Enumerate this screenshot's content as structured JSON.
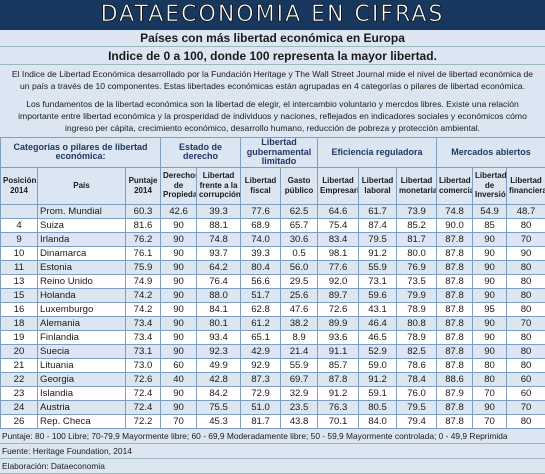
{
  "header": {
    "banner": "DATAECONOMIA EN CIFRAS",
    "title": "Países con más libertad económica en Europa",
    "subtitle": "Indice de 0 a 100, donde 100 representa la mayor libertad."
  },
  "paragraphs": [
    "El Indice de Libertad Económica desarrollado por la Fundación Heritage y The Wall Street Journal mide el nivel de libertad económica de un país a través de 10 componentes. Estas libertades económicas están agrupadas en 4 categorías o pilares de libertad económica.",
    "Los fundamentos de la libertad económica son la libertad de elegir, el intercambio voluntario y mercdos libres. Existe una relación importante entre libertad económica y la prosperidad de individuos y naciones, reflejados en indicadores sociales y económicos cómo ingreso per cápita, crecimiento económico, desarrollo humano, reducción de pobreza y protección ambiental."
  ],
  "table": {
    "groups": [
      {
        "label": "Categorías o pilares de libertad económica:",
        "span": 3
      },
      {
        "label": "Estado de derecho",
        "span": 2
      },
      {
        "label": "Libertad gubernamental limitado",
        "span": 2
      },
      {
        "label": "Eficiencia reguladora",
        "span": 3
      },
      {
        "label": "Mercados abiertos",
        "span": 3
      }
    ],
    "columns": [
      "Posición 2014",
      "País",
      "Puntaje 2014",
      "Derechos de Propiedad",
      "Libertad frente a la corrupción",
      "Libertad fiscal",
      "Gasto público",
      "Libertad Empresarial",
      "Libertad laboral",
      "Libertad monetaria",
      "Libertad comercial",
      "Libertad de Inversión",
      "Libertad financiera"
    ],
    "rows": [
      [
        null,
        "Prom. Mundial",
        "60.3",
        "42.6",
        "39.3",
        "77.6",
        "62.5",
        "64.6",
        "61.7",
        "73.9",
        "74.8",
        "54.9",
        "48.7"
      ],
      [
        "4",
        "Suiza",
        "81.6",
        "90",
        "88.1",
        "68.9",
        "65.7",
        "75.4",
        "87.4",
        "85.2",
        "90.0",
        "85",
        "80"
      ],
      [
        "9",
        "Irlanda",
        "76.2",
        "90",
        "74.8",
        "74.0",
        "30.6",
        "83.4",
        "79.5",
        "81.7",
        "87.8",
        "90",
        "70"
      ],
      [
        "10",
        "Dinamarca",
        "76.1",
        "90",
        "93.7",
        "39.3",
        "0.5",
        "98.1",
        "91.2",
        "80.0",
        "87.8",
        "90",
        "90"
      ],
      [
        "11",
        "Estonia",
        "75.9",
        "90",
        "64.2",
        "80.4",
        "56.0",
        "77.6",
        "55.9",
        "76.9",
        "87.8",
        "90",
        "80"
      ],
      [
        "13",
        "Reino Unido",
        "74.9",
        "90",
        "76.4",
        "56.6",
        "29.5",
        "92.0",
        "73.1",
        "73.5",
        "87.8",
        "90",
        "80"
      ],
      [
        "15",
        "Holanda",
        "74.2",
        "90",
        "88.0",
        "51.7",
        "25.6",
        "89.7",
        "59.6",
        "79.9",
        "87.8",
        "90",
        "80"
      ],
      [
        "16",
        "Luxemburgo",
        "74.2",
        "90",
        "84.1",
        "62.8",
        "47.6",
        "72.6",
        "43.1",
        "78.9",
        "87.8",
        "95",
        "80"
      ],
      [
        "18",
        "Alemania",
        "73.4",
        "90",
        "80.1",
        "61.2",
        "38.2",
        "89.9",
        "46.4",
        "80.8",
        "87.8",
        "90",
        "70"
      ],
      [
        "19",
        "Finlandia",
        "73.4",
        "90",
        "93.4",
        "65.1",
        "8.9",
        "93.6",
        "46.5",
        "78.9",
        "87.8",
        "90",
        "80"
      ],
      [
        "20",
        "Suecia",
        "73.1",
        "90",
        "92.3",
        "42.9",
        "21.4",
        "91.1",
        "52.9",
        "82.5",
        "87.8",
        "90",
        "80"
      ],
      [
        "21",
        "Lituania",
        "73.0",
        "60",
        "49.9",
        "92.9",
        "55.9",
        "85.7",
        "59.0",
        "78.6",
        "87.8",
        "80",
        "80"
      ],
      [
        "22",
        "Georgia",
        "72.6",
        "40",
        "42.8",
        "87.3",
        "69.7",
        "87.8",
        "91.2",
        "78.4",
        "88.6",
        "80",
        "60"
      ],
      [
        "23",
        "Islandia",
        "72.4",
        "90",
        "84.2",
        "72.9",
        "32.9",
        "91.2",
        "59.1",
        "76.0",
        "87.9",
        "70",
        "60"
      ],
      [
        "24",
        "Austria",
        "72.4",
        "90",
        "75.5",
        "51.0",
        "23.5",
        "76.3",
        "80.5",
        "79.5",
        "87.8",
        "90",
        "70"
      ],
      [
        "26",
        "Rep. Checa",
        "72.2",
        "70",
        "45.3",
        "81.7",
        "43.8",
        "70.1",
        "84.0",
        "79.4",
        "87.8",
        "70",
        "80"
      ]
    ]
  },
  "footer": [
    "Puntaje: 80 - 100 Libre; 70-79,9 Mayormente libre; 60 - 69,9 Moderadamente libre; 50 - 59,9 Mayormente controlada; 0 - 49,9 Reprimida",
    "Fuente: Heritage Foundation, 2014",
    "Elaboración: Dataeconomia"
  ]
}
